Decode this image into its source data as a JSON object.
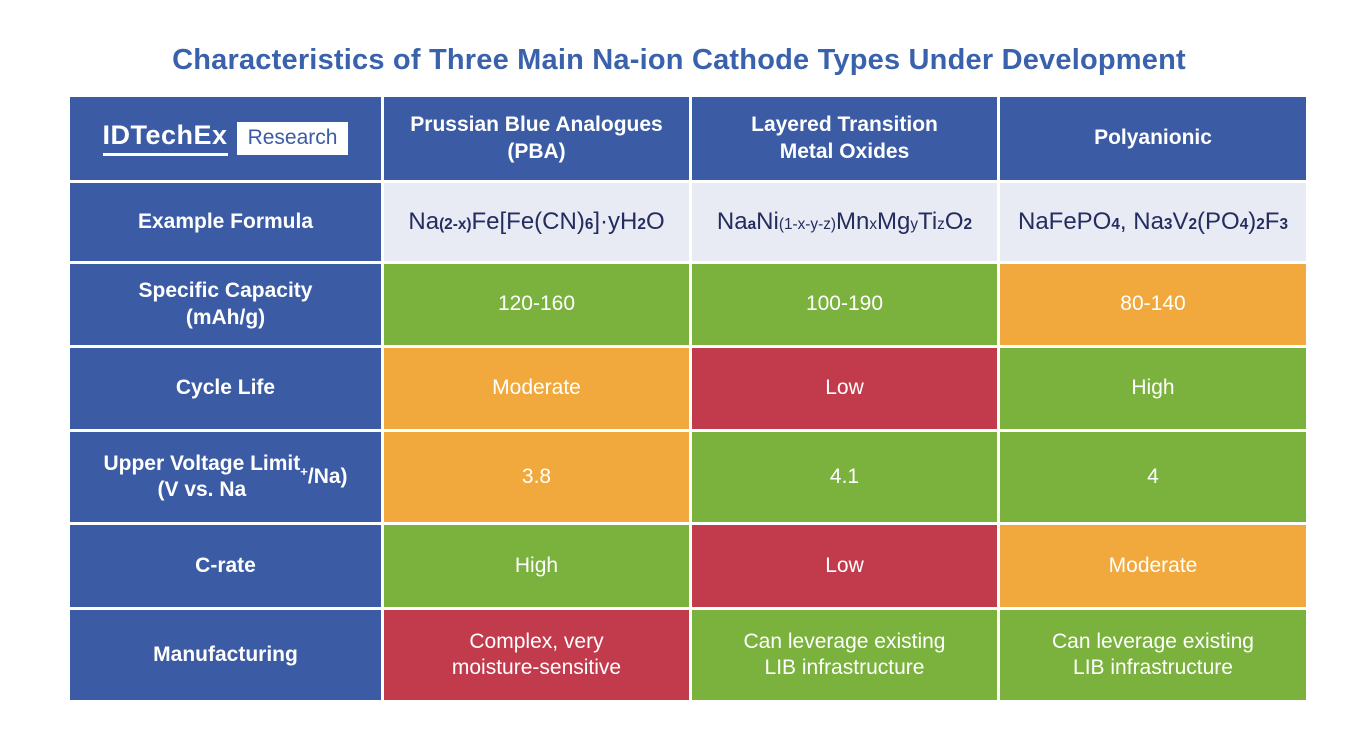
{
  "title": "Characteristics of Three Main Na-ion Cathode Types Under Development",
  "logo": {
    "brand": "IDTechEx",
    "badge": "Research"
  },
  "colors": {
    "blue": "#3B5BA4",
    "green": "#7AB23D",
    "orange": "#F1A83C",
    "red": "#C23B4D",
    "light": "#E8EAF4",
    "title": "#3A62AC",
    "formula_text": "#232D5E"
  },
  "table": {
    "columns": [
      "Prussian Blue Analogues\n(PBA)",
      "Layered Transition\nMetal Oxides",
      "Polyanionic"
    ],
    "rows": [
      {
        "label": "Example Formula",
        "kind": "formula",
        "cells": [
          {
            "runs": [
              {
                "t": "Na"
              },
              {
                "t": "(2-x)",
                "sub": true,
                "b": true
              },
              {
                "t": "Fe[Fe(CN)"
              },
              {
                "t": "6",
                "sub": true,
                "b": true
              },
              {
                "t": "]·yH"
              },
              {
                "t": "2",
                "sub": true,
                "b": true
              },
              {
                "t": "O"
              }
            ]
          },
          {
            "runs": [
              {
                "t": "Na"
              },
              {
                "t": "a",
                "sub": true,
                "b": true
              },
              {
                "t": "Ni"
              },
              {
                "t": "(1-x-y-z)",
                "sub": true
              },
              {
                "t": "Mn"
              },
              {
                "t": "x",
                "sub": true
              },
              {
                "t": "Mg"
              },
              {
                "t": "y",
                "sub": true
              },
              {
                "t": "Ti"
              },
              {
                "t": "z",
                "sub": true
              },
              {
                "t": "O"
              },
              {
                "t": "2",
                "sub": true,
                "b": true
              }
            ]
          },
          {
            "runs": [
              {
                "t": "NaFePO"
              },
              {
                "t": "4",
                "sub": true,
                "b": true
              },
              {
                "t": ", Na"
              },
              {
                "t": "3",
                "sub": true,
                "b": true
              },
              {
                "t": "V"
              },
              {
                "t": "2",
                "sub": true,
                "b": true
              },
              {
                "t": "(PO"
              },
              {
                "t": "4",
                "sub": true,
                "b": true
              },
              {
                "t": ")"
              },
              {
                "t": "2",
                "sub": true,
                "b": true
              },
              {
                "t": "F"
              },
              {
                "t": "3",
                "sub": true,
                "b": true
              }
            ]
          }
        ]
      },
      {
        "label": "Specific Capacity\n(mAh/g)",
        "kind": "rating",
        "cells": [
          {
            "text": "120-160",
            "tone": "green"
          },
          {
            "text": "100-190",
            "tone": "green"
          },
          {
            "text": "80-140",
            "tone": "orange"
          }
        ]
      },
      {
        "label": "Cycle Life",
        "kind": "rating",
        "cells": [
          {
            "text": "Moderate",
            "tone": "orange"
          },
          {
            "text": "Low",
            "tone": "red"
          },
          {
            "text": "High",
            "tone": "green"
          }
        ]
      },
      {
        "label": "Upper Voltage Limit",
        "label_runs": [
          {
            "t": "Upper Voltage Limit\n(V vs. Na"
          },
          {
            "t": "+",
            "sup": true
          },
          {
            "t": "/Na)"
          }
        ],
        "kind": "rating",
        "cells": [
          {
            "text": "3.8",
            "tone": "orange"
          },
          {
            "text": "4.1",
            "tone": "green"
          },
          {
            "text": "4",
            "tone": "green"
          }
        ]
      },
      {
        "label": "C-rate",
        "kind": "rating",
        "cells": [
          {
            "text": "High",
            "tone": "green"
          },
          {
            "text": "Low",
            "tone": "red"
          },
          {
            "text": "Moderate",
            "tone": "orange"
          }
        ]
      },
      {
        "label": "Manufacturing",
        "kind": "rating",
        "cells": [
          {
            "text": "Complex, very\nmoisture-sensitive",
            "tone": "red"
          },
          {
            "text": "Can leverage existing\nLIB infrastructure",
            "tone": "green"
          },
          {
            "text": "Can leverage existing\nLIB infrastructure",
            "tone": "green"
          }
        ]
      }
    ]
  }
}
